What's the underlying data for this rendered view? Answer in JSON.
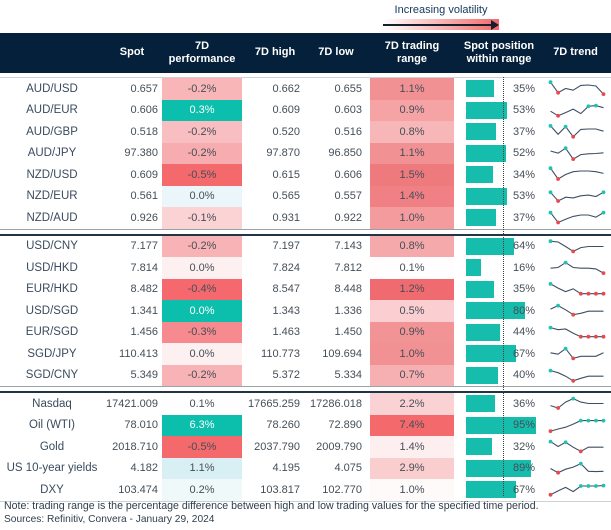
{
  "legend": {
    "label": "Increasing volatility"
  },
  "colors": {
    "header_bg": "#05203A",
    "accent_teal": "#0BBFAC",
    "bar_teal": "#16BDAC",
    "strong_red": "#F4696B",
    "spark_line": "#3F4E63",
    "spark_high_dot": "#21C1B1",
    "spark_low_dot": "#E8494D"
  },
  "chart_data": {
    "type": "table",
    "columns": [
      "",
      "Spot",
      "7D performance",
      "7D high",
      "7D low",
      "7D trading range",
      "Spot position within range",
      "7D trend"
    ],
    "legend_note": "Increasing volatility",
    "blocks": [
      {
        "rows": [
          {
            "label": "AUD/USD",
            "spot": "0.657",
            "perf": "-0.2%",
            "perf_color": "#F8B6B9",
            "high": "0.662",
            "low": "0.655",
            "range": "1.1%",
            "range_color": "#F29193",
            "position_pct": 35,
            "position_label": "35%",
            "spark": {
              "v": [
                0.95,
                0.2,
                0.5,
                0.38,
                0.72,
                0.75,
                0.68,
                0.1
              ],
              "hi": [
                0
              ],
              "lo": [
                1,
                7
              ]
            }
          },
          {
            "label": "AUD/EUR",
            "spot": "0.606",
            "perf": "0.3%",
            "perf_color": "#0BBFAC",
            "high": "0.609",
            "low": "0.603",
            "range": "0.9%",
            "range_color": "#F5A3A5",
            "position_pct": 53,
            "position_label": "53%",
            "spark": {
              "v": [
                0.45,
                0.12,
                0.35,
                0.6,
                0.28,
                0.8,
                0.85,
                0.7
              ],
              "hi": [
                5,
                6
              ],
              "lo": [
                1
              ]
            }
          },
          {
            "label": "AUD/GBP",
            "spot": "0.518",
            "perf": "-0.2%",
            "perf_color": "#F9BEC1",
            "high": "0.520",
            "low": "0.516",
            "range": "0.8%",
            "range_color": "#F7B6B8",
            "position_pct": 37,
            "position_label": "37%",
            "spark": {
              "v": [
                0.9,
                0.3,
                0.85,
                0.12,
                0.65,
                0.68,
                0.68,
                0.52
              ],
              "hi": [
                0,
                2
              ],
              "lo": [
                3
              ]
            }
          },
          {
            "label": "AUD/JPY",
            "spot": "97.380",
            "perf": "-0.2%",
            "perf_color": "#F7ACAF",
            "high": "97.870",
            "low": "96.850",
            "range": "1.1%",
            "range_color": "#F29193",
            "position_pct": 52,
            "position_label": "52%",
            "spark": {
              "v": [
                0.68,
                0.52,
                0.88,
                0.1,
                0.42,
                0.48,
                0.5,
                0.55
              ],
              "hi": [
                2
              ],
              "lo": [
                3
              ]
            }
          },
          {
            "label": "NZD/USD",
            "spot": "0.609",
            "perf": "-0.5%",
            "perf_color": "#F4696B",
            "high": "0.615",
            "low": "0.606",
            "range": "1.5%",
            "range_color": "#EF7A7D",
            "position_pct": 34,
            "position_label": "34%",
            "spark": {
              "v": [
                0.95,
                0.18,
                0.5,
                0.7,
                0.75,
                0.75,
                0.7,
                0.58
              ],
              "hi": [
                0
              ],
              "lo": [
                1
              ]
            }
          },
          {
            "label": "NZD/EUR",
            "spot": "0.561",
            "perf": "0.0%",
            "perf_color": "#EAF6F9",
            "high": "0.565",
            "low": "0.557",
            "range": "1.4%",
            "range_color": "#F08083",
            "position_pct": 53,
            "position_label": "53%",
            "spark": {
              "v": [
                0.8,
                0.18,
                0.45,
                0.4,
                0.55,
                0.6,
                0.5,
                0.8
              ],
              "hi": [
                0,
                7
              ],
              "lo": [
                1
              ]
            }
          },
          {
            "label": "NZD/AUD",
            "spot": "0.926",
            "perf": "-0.1%",
            "perf_color": "#FBD3D5",
            "high": "0.931",
            "low": "0.922",
            "range": "1.0%",
            "range_color": "#F49B9D",
            "position_pct": 37,
            "position_label": "37%",
            "spark": {
              "v": [
                0.85,
                0.14,
                0.38,
                0.58,
                0.68,
                0.68,
                0.52,
                0.85
              ],
              "hi": [
                0,
                7
              ],
              "lo": [
                1
              ]
            }
          }
        ]
      },
      {
        "rows": [
          {
            "label": "USD/CNY",
            "spot": "7.177",
            "perf": "-0.2%",
            "perf_color": "#F8B3B6",
            "high": "7.197",
            "low": "7.143",
            "range": "0.8%",
            "range_color": "#F5A9AB",
            "position_pct": 64,
            "position_label": "64%",
            "spark": {
              "v": [
                0.88,
                0.82,
                0.5,
                0.15,
                0.42,
                0.5,
                0.5,
                0.5
              ],
              "hi": [
                0
              ],
              "lo": [
                3
              ]
            }
          },
          {
            "label": "USD/HKD",
            "spot": "7.814",
            "perf": "0.0%",
            "perf_color": "#FDF0F1",
            "high": "7.824",
            "low": "7.812",
            "range": "0.1%",
            "range_color": "#FFFDFD",
            "position_pct": 16,
            "position_label": "16%",
            "spark": {
              "v": [
                0.45,
                0.5,
                0.85,
                0.5,
                0.45,
                0.45,
                0.4,
                0.1
              ],
              "hi": [
                2
              ],
              "lo": [
                7
              ]
            }
          },
          {
            "label": "EUR/HKD",
            "spot": "8.482",
            "perf": "-0.4%",
            "perf_color": "#F5696E",
            "high": "8.547",
            "low": "8.448",
            "range": "1.2%",
            "range_color": "#F06B6F",
            "position_pct": 35,
            "position_label": "35%",
            "spark": {
              "v": [
                0.9,
                0.6,
                0.35,
                0.55,
                0.2,
                0.2,
                0.2,
                0.2
              ],
              "hi": [
                0
              ],
              "lo": [
                4,
                5,
                6,
                7
              ]
            }
          },
          {
            "label": "USD/SGD",
            "spot": "1.341",
            "perf": "0.0%",
            "perf_color": "#0BBFAC",
            "high": "1.343",
            "low": "1.336",
            "range": "0.5%",
            "range_color": "#FBCFD1",
            "position_pct": 80,
            "position_label": "80%",
            "spark": {
              "v": [
                0.6,
                0.85,
                0.55,
                0.2,
                0.3,
                0.45,
                0.45,
                0.45
              ],
              "hi": [
                1
              ],
              "lo": [
                3
              ]
            }
          },
          {
            "label": "EUR/SGD",
            "spot": "1.456",
            "perf": "-0.3%",
            "perf_color": "#F78A8E",
            "high": "1.463",
            "low": "1.450",
            "range": "0.9%",
            "range_color": "#F29395",
            "position_pct": 44,
            "position_label": "44%",
            "spark": {
              "v": [
                0.85,
                0.7,
                0.75,
                0.45,
                0.2,
                0.2,
                0.2,
                0.2
              ],
              "hi": [
                0
              ],
              "lo": [
                4,
                5,
                6,
                7
              ]
            }
          },
          {
            "label": "SGD/JPY",
            "spot": "110.413",
            "perf": "0.0%",
            "perf_color": "#FDF0F1",
            "high": "110.773",
            "low": "109.694",
            "range": "1.0%",
            "range_color": "#F19193",
            "position_pct": 67,
            "position_label": "67%",
            "spark": {
              "v": [
                0.55,
                0.45,
                0.85,
                0.15,
                0.3,
                0.3,
                0.3,
                0.55
              ],
              "hi": [
                2
              ],
              "lo": [
                3
              ]
            }
          },
          {
            "label": "SGD/CNY",
            "spot": "5.349",
            "perf": "-0.2%",
            "perf_color": "#F8B3B6",
            "high": "5.372",
            "low": "5.334",
            "range": "0.7%",
            "range_color": "#F7B0B2",
            "position_pct": 40,
            "position_label": "40%",
            "spark": {
              "v": [
                0.85,
                0.7,
                0.45,
                0.12,
                0.3,
                0.45,
                0.45,
                0.45
              ],
              "hi": [
                0
              ],
              "lo": [
                3
              ]
            }
          }
        ]
      },
      {
        "rows": [
          {
            "label": "Nasdaq",
            "spot": "17421.009",
            "perf": "0.1%",
            "perf_color": "#FEFEFE",
            "high": "17665.259",
            "low": "17286.018",
            "range": "2.2%",
            "range_color": "#FAD2D4",
            "position_pct": 36,
            "position_label": "36%",
            "spark": {
              "v": [
                0.35,
                0.18,
                0.6,
                0.85,
                0.6,
                0.5,
                0.5,
                0.5
              ],
              "hi": [
                3
              ],
              "lo": [
                1
              ]
            }
          },
          {
            "label": "Oil (WTI)",
            "spot": "78.010",
            "perf": "6.3%",
            "perf_color": "#0BBFAC",
            "high": "78.260",
            "low": "72.890",
            "range": "7.4%",
            "range_color": "#F4696B",
            "position_pct": 95,
            "position_label": "95%",
            "spark": {
              "v": [
                0.1,
                0.25,
                0.38,
                0.6,
                0.85,
                0.85,
                0.85,
                0.85
              ],
              "hi": [
                4,
                5,
                6,
                7
              ],
              "lo": [
                0
              ]
            }
          },
          {
            "label": "Gold",
            "spot": "2018.710",
            "perf": "-0.5%",
            "perf_color": "#F4696B",
            "high": "2037.790",
            "low": "2009.790",
            "range": "1.4%",
            "range_color": "#FDEEEF",
            "position_pct": 32,
            "position_label": "32%",
            "spark": {
              "v": [
                0.85,
                0.5,
                0.8,
                0.45,
                0.15,
                0.45,
                0.45,
                0.45
              ],
              "hi": [
                0,
                2
              ],
              "lo": [
                4
              ]
            }
          },
          {
            "label": "US 10-year yields",
            "spot": "4.182",
            "perf": "1.1%",
            "perf_color": "#D8F0F3",
            "high": "4.195",
            "low": "4.075",
            "range": "2.9%",
            "range_color": "#FACDCF",
            "position_pct": 89,
            "position_label": "89%",
            "spark": {
              "v": [
                0.5,
                0.2,
                0.45,
                0.6,
                0.85,
                0.3,
                0.28,
                0.3
              ],
              "hi": [
                4
              ],
              "lo": [
                1
              ]
            }
          },
          {
            "label": "DXY",
            "spot": "103.474",
            "perf": "0.2%",
            "perf_color": "#F0F9FA",
            "high": "103.817",
            "low": "102.770",
            "range": "1.0%",
            "range_color": "#FEFAFA",
            "position_pct": 67,
            "position_label": "67%",
            "spark": {
              "v": [
                0.12,
                0.4,
                0.65,
                0.35,
                0.75,
                0.75,
                0.75,
                0.78
              ],
              "hi": [
                4,
                5,
                6,
                7
              ],
              "lo": [
                0
              ]
            }
          }
        ]
      }
    ]
  },
  "footer": {
    "note": "Note: trading range is the percentage difference between high and low trading values for the specified time period.",
    "sources": "Sources: Refinitiv, Convera - January 29, 2024"
  }
}
